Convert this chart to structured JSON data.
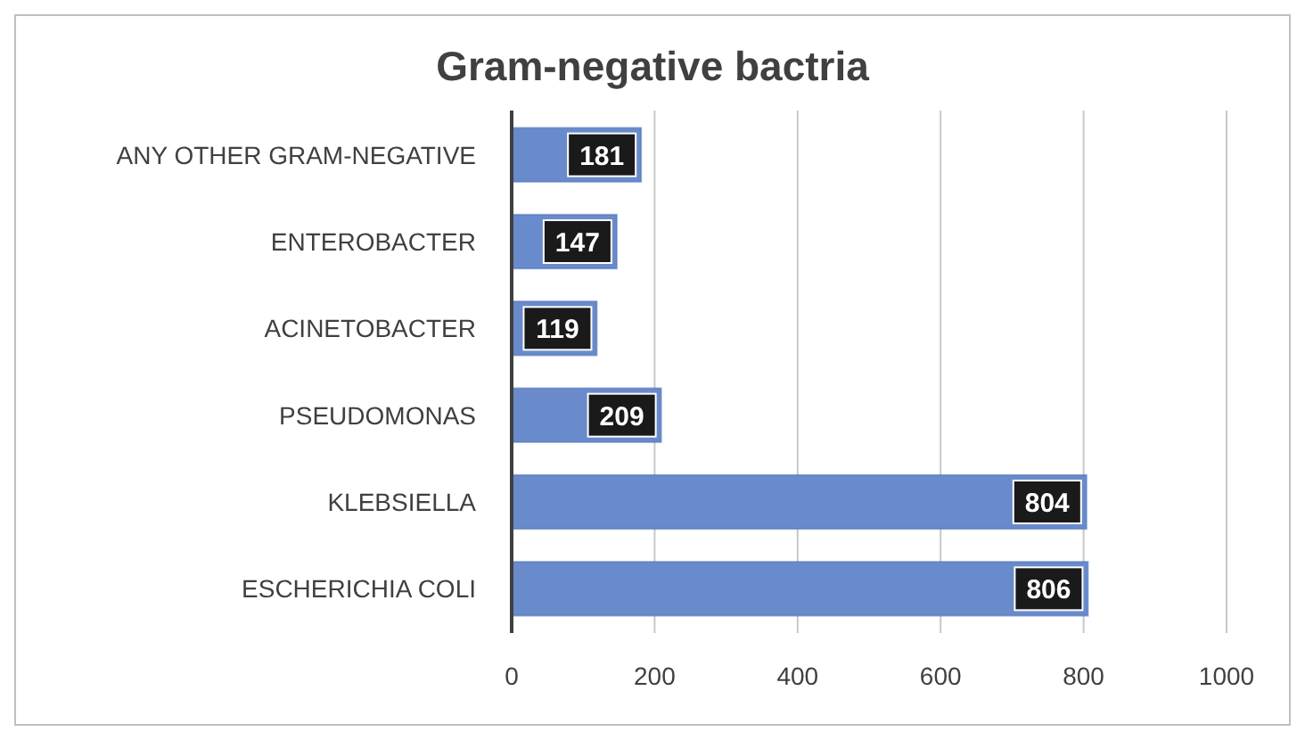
{
  "chart_data": {
    "type": "bar",
    "orientation": "horizontal",
    "title": "Gram-negative bactria",
    "categories": [
      "ANY OTHER GRAM-NEGATIVE",
      "ENTEROBACTER",
      "ACINETOBACTER",
      "PSEUDOMONAS",
      "KLEBSIELLA",
      "ESCHERICHIA COLI"
    ],
    "values": [
      181,
      147,
      119,
      209,
      804,
      806
    ],
    "color": "#6a8bcb",
    "xlim": [
      0,
      1000
    ],
    "xticks": [
      0,
      200,
      400,
      600,
      800,
      1000
    ],
    "grid": "x",
    "data_labels": true
  }
}
